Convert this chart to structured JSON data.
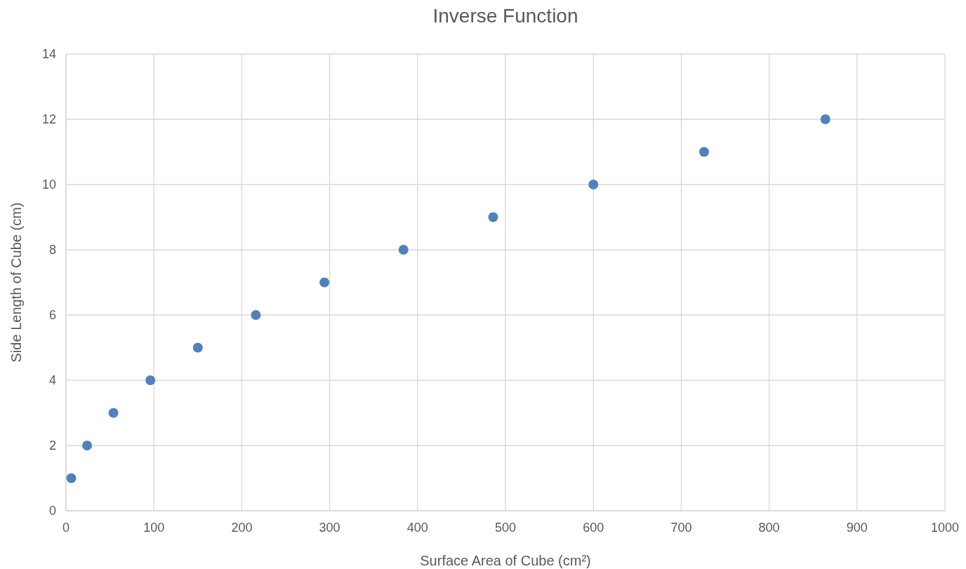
{
  "chart_data": {
    "type": "scatter",
    "title": "Inverse Function",
    "xlabel": "Surface Area of Cube (cm²)",
    "ylabel": "Side Length of Cube (cm)",
    "x": [
      6,
      24,
      54,
      96,
      150,
      216,
      294,
      384,
      486,
      600,
      726,
      864
    ],
    "series": [
      {
        "color": "#4f81bd",
        "values": [
          1,
          2,
          3,
          4,
          5,
          6,
          7,
          8,
          9,
          10,
          11,
          12
        ]
      }
    ],
    "xlim": [
      0,
      1000
    ],
    "xticks": [
      0,
      100,
      200,
      300,
      400,
      500,
      600,
      700,
      800,
      900,
      1000
    ],
    "ylim": [
      0,
      14
    ],
    "yticks": [
      0,
      2,
      4,
      6,
      8,
      10,
      12,
      14
    ],
    "grid": true,
    "marker": "circle"
  }
}
